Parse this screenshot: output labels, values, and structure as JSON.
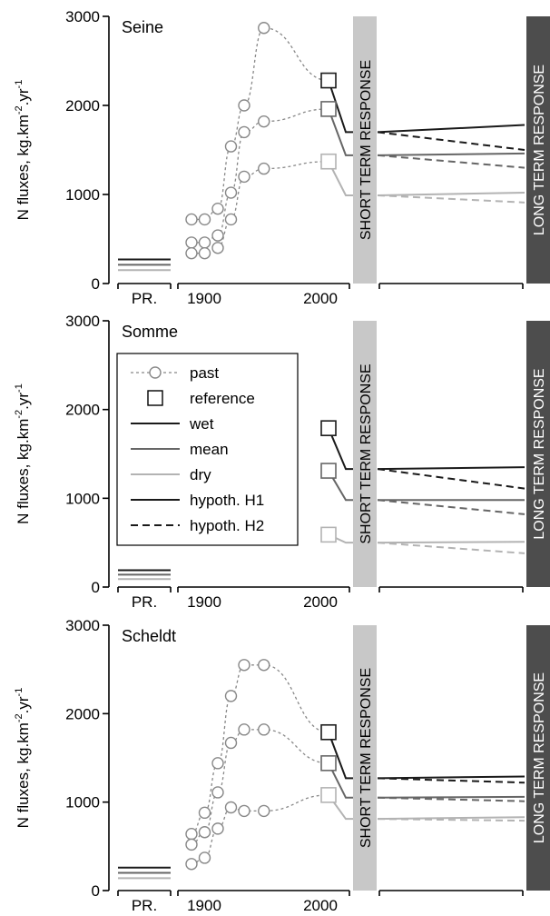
{
  "figure": {
    "ylabel_main": "N fluxes, kg.km",
    "ylabel_sup1": "-2",
    "ylabel_mid": ".yr",
    "ylabel_sup2": "-1",
    "x_tick_pristine": "PR.",
    "x_tick_1900": "1900",
    "x_tick_2000": "2000",
    "short_term_label": "SHORT TERM RESPONSE",
    "long_term_label": "LONG TERM RESPONSE",
    "legend": [
      {
        "key": "past",
        "label": "past"
      },
      {
        "key": "reference",
        "label": "reference"
      },
      {
        "key": "wet",
        "label": "wet"
      },
      {
        "key": "mean",
        "label": "mean"
      },
      {
        "key": "dry",
        "label": "dry"
      },
      {
        "key": "h1",
        "label": "hypoth. H1"
      },
      {
        "key": "h2",
        "label": "hypoth. H2"
      }
    ]
  },
  "colors": {
    "wet": "#1a1a1a",
    "mean": "#666666",
    "dry": "#b3b3b3",
    "past": "#888888",
    "short_band": "#c8c8c8",
    "long_band": "#4d4d4d"
  },
  "chart_data": [
    {
      "type": "line",
      "title": "Seine",
      "ylim": [
        0,
        3000
      ],
      "yticks": [
        0,
        1000,
        2000,
        3000
      ],
      "pristine": {
        "wet": 270,
        "mean": 210,
        "dry": 150
      },
      "past": {
        "x": [
          1900,
          1910,
          1920,
          1930,
          1940,
          1955,
          1985
        ],
        "wet": [
          720,
          720,
          840,
          1540,
          2000,
          2870,
          2280
        ],
        "mean": [
          460,
          460,
          540,
          1020,
          1700,
          1820,
          1960
        ],
        "dry": [
          340,
          340,
          400,
          720,
          1200,
          1290,
          1370
        ]
      },
      "reference": {
        "x": 1985,
        "wet": 2280,
        "mean": 1960,
        "dry": 1370
      },
      "short_term": {
        "wet": 1700,
        "mean": 1440,
        "dry": 990
      },
      "long_term": {
        "h1": {
          "wet": 1780,
          "mean": 1460,
          "dry": 1020
        },
        "h2": {
          "wet": 1500,
          "mean": 1300,
          "dry": 910
        }
      }
    },
    {
      "type": "line",
      "title": "Somme",
      "ylim": [
        0,
        3000
      ],
      "yticks": [
        0,
        1000,
        2000,
        3000
      ],
      "pristine": {
        "wet": 190,
        "mean": 140,
        "dry": 90
      },
      "past": null,
      "reference": {
        "x": 1985,
        "wet": 1790,
        "mean": 1310,
        "dry": 590
      },
      "short_term": {
        "wet": 1330,
        "mean": 980,
        "dry": 500
      },
      "long_term": {
        "h1": {
          "wet": 1350,
          "mean": 980,
          "dry": 510
        },
        "h2": {
          "wet": 1110,
          "mean": 820,
          "dry": 380
        }
      }
    },
    {
      "type": "line",
      "title": "Scheldt",
      "ylim": [
        0,
        3000
      ],
      "yticks": [
        0,
        1000,
        2000,
        3000
      ],
      "pristine": {
        "wet": 260,
        "mean": 200,
        "dry": 140
      },
      "past": {
        "x": [
          1900,
          1910,
          1920,
          1930,
          1940,
          1955,
          1985
        ],
        "wet": [
          640,
          880,
          1440,
          2200,
          2550,
          2550,
          1790
        ],
        "mean": [
          520,
          660,
          1110,
          1670,
          1820,
          1820,
          1440
        ],
        "dry": [
          300,
          370,
          700,
          940,
          900,
          900,
          1080
        ]
      },
      "reference": {
        "x": 1985,
        "wet": 1790,
        "mean": 1440,
        "dry": 1080
      },
      "short_term": {
        "wet": 1270,
        "mean": 1050,
        "dry": 810
      },
      "long_term": {
        "h1": {
          "wet": 1290,
          "mean": 1060,
          "dry": 830
        },
        "h2": {
          "wet": 1220,
          "mean": 1010,
          "dry": 790
        }
      }
    }
  ]
}
